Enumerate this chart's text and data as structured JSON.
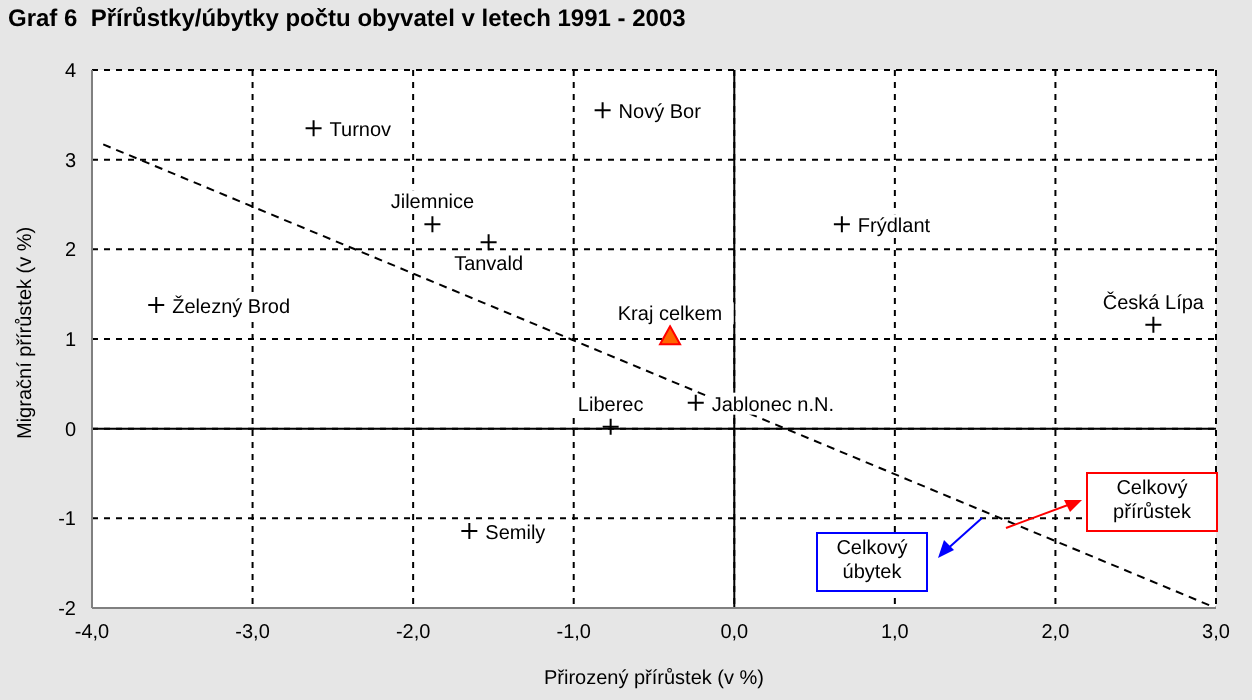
{
  "chart_data": {
    "type": "scatter",
    "title": "Graf 6  Přírůstky/úbytky počtu obyvatel v letech 1991 - 2003",
    "xlabel": "Přirozený přírůstek (v %)",
    "ylabel": "Migrační přírůstek (v %)",
    "xlim": [
      -4,
      3
    ],
    "xticks": [
      {
        "value": -4,
        "label": "-4,0"
      },
      {
        "value": -3,
        "label": "-3,0"
      },
      {
        "value": -2,
        "label": "-2,0"
      },
      {
        "value": -1,
        "label": "-1,0"
      },
      {
        "value": 0,
        "label": "0,0"
      },
      {
        "value": 1,
        "label": "1,0"
      },
      {
        "value": 2,
        "label": "2,0"
      },
      {
        "value": 3,
        "label": "3,0"
      }
    ],
    "ylim": [
      -2,
      4
    ],
    "yticks": [
      -2,
      -1,
      0,
      1,
      2,
      3,
      4
    ],
    "grid": true,
    "legend": false,
    "marker": "cross",
    "series": [
      {
        "name": "Turnov",
        "color": "#000000",
        "x": [
          -2.62
        ],
        "values": [
          3.35
        ]
      },
      {
        "name": "Nový Bor",
        "color": "#000000",
        "x": [
          -0.82
        ],
        "values": [
          3.55
        ]
      },
      {
        "name": "Jilemnice",
        "color": "#000000",
        "x": [
          -1.88
        ],
        "values": [
          2.28
        ]
      },
      {
        "name": "Tanvald",
        "color": "#000000",
        "x": [
          -1.53
        ],
        "values": [
          2.08
        ]
      },
      {
        "name": "Železný Brod",
        "color": "#000000",
        "x": [
          -3.6
        ],
        "values": [
          1.38
        ]
      },
      {
        "name": "Kraj celkem",
        "color": "#ff6600",
        "marker": "triangle",
        "x": [
          -0.4
        ],
        "values": [
          1.03
        ]
      },
      {
        "name": "Frýdlant",
        "color": "#000000",
        "x": [
          0.67
        ],
        "values": [
          2.28
        ]
      },
      {
        "name": "Česká Lípa",
        "color": "#000000",
        "x": [
          2.61
        ],
        "values": [
          1.16
        ]
      },
      {
        "name": "Liberec",
        "color": "#000000",
        "x": [
          -0.77
        ],
        "values": [
          0.02
        ]
      },
      {
        "name": "Jablonec n.N.",
        "color": "#000000",
        "x": [
          -0.24
        ],
        "values": [
          0.29
        ]
      },
      {
        "name": "Semily",
        "color": "#000000",
        "x": [
          -1.65
        ],
        "values": [
          -1.14
        ]
      },
      {
        "type": "line",
        "color": "#000000",
        "line_style": "dashed",
        "marker": "none",
        "x": [
          -3.93,
          3.0
        ],
        "values": [
          3.17,
          -2.0
        ]
      }
    ],
    "annotations": [
      "Celkový přírůstek",
      "Celkový úbytek"
    ]
  }
}
